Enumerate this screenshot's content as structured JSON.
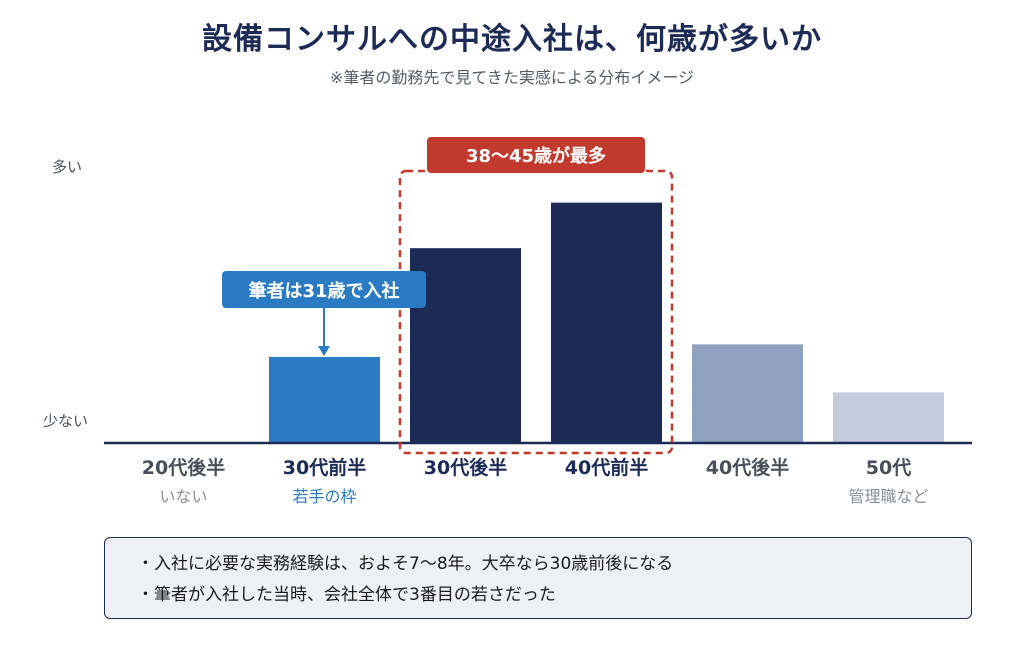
{
  "title": "設備コンサルへの中途入社は、何歳が多いか",
  "subtitle": "※筆者の勤務先で見てきた実感による分布イメージ",
  "chart_data": {
    "type": "bar",
    "y_axis_labels": {
      "high": "多い",
      "low": "少ない"
    },
    "ylim": [
      0,
      100
    ],
    "categories": [
      "20代後半",
      "30代前半",
      "30代後半",
      "40代前半",
      "40代後半",
      "50代"
    ],
    "sublabels": [
      "いない",
      "若手の枠",
      "",
      "",
      "",
      "管理職など"
    ],
    "values": [
      0,
      34,
      77,
      95,
      39,
      20
    ],
    "colors": [
      "#2b7bc4",
      "#2b7bc4",
      "#1c2b55",
      "#1c2b55",
      "#8ea2c0",
      "#c2ccdc"
    ],
    "label_colors": [
      "#4a4f5a",
      "#1c2b55",
      "#1c2b55",
      "#1c2b55",
      "#4a4f5a",
      "#4a4f5a"
    ],
    "sublabel_colors": [
      "#8a8f98",
      "#2b7bc4",
      "#8a8f98",
      "#8a8f98",
      "#8a8f98",
      "#8a8f98"
    ],
    "annotations": [
      {
        "text": "筆者は31歳で入社",
        "target_category": "30代前半",
        "color": "#2b7bc4"
      },
      {
        "text": "38〜45歳が最多",
        "target_categories": [
          "30代後半",
          "40代前半"
        ],
        "color": "#c23a2e"
      }
    ]
  },
  "notes": [
    "・入社に必要な実務経験は、およそ7〜8年。大卒なら30歳前後になる",
    "・筆者が入社した当時、会社全体で3番目の若さだった"
  ]
}
